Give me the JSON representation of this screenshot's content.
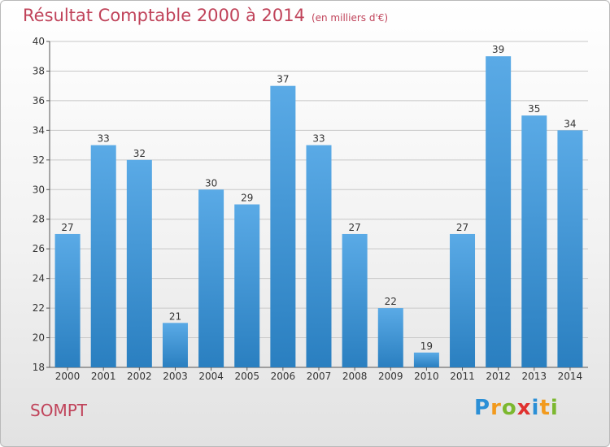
{
  "header": {
    "title": "Résultat Comptable 2000 à 2014",
    "unit": "(en milliers d'€)"
  },
  "footer": {
    "commune": "SOMPT",
    "logo": [
      "P",
      "r",
      "o",
      "x",
      "i",
      "t",
      "i"
    ]
  },
  "colors": {
    "title": "#c0435a",
    "bar_top": "#5aaae6",
    "bar_bottom": "#2a7fc0",
    "logo": [
      "#2b8fd6",
      "#f29a1d",
      "#7cb82f",
      "#e0312f",
      "#2b8fd6",
      "#f29a1d",
      "#7cb82f"
    ]
  },
  "chart_data": {
    "type": "bar",
    "categories": [
      "2000",
      "2001",
      "2002",
      "2003",
      "2004",
      "2005",
      "2006",
      "2007",
      "2008",
      "2009",
      "2010",
      "2011",
      "2012",
      "2013",
      "2014"
    ],
    "values": [
      27,
      33,
      32,
      21,
      30,
      29,
      37,
      33,
      27,
      22,
      19,
      27,
      39,
      35,
      34
    ],
    "title": "Résultat Comptable 2000 à 2014",
    "subtitle": "(en milliers d'€)",
    "xlabel": "",
    "ylabel": "",
    "ylim": [
      18,
      40
    ],
    "yticks": [
      18,
      20,
      22,
      24,
      26,
      28,
      30,
      32,
      34,
      36,
      38,
      40
    ],
    "grid": true,
    "data_labels": true
  }
}
